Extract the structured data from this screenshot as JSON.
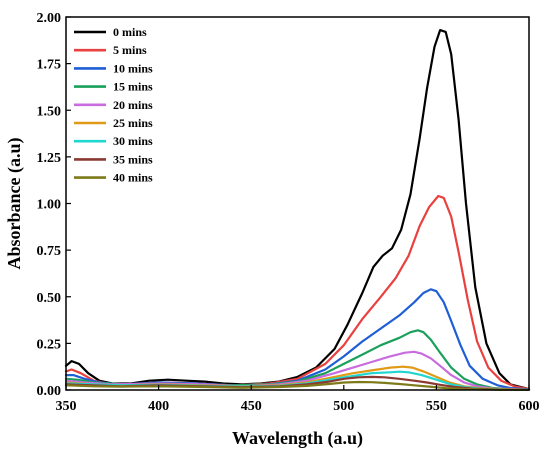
{
  "chart_data": {
    "type": "line",
    "title": "",
    "xlabel": "Wavelength (a.u)",
    "ylabel": "Absorbance (a.u)",
    "xlim": [
      350,
      600
    ],
    "ylim": [
      0,
      2.0
    ],
    "xticks": [
      350,
      400,
      450,
      500,
      550,
      600
    ],
    "yticks": [
      0,
      0.25,
      0.5,
      0.75,
      1.0,
      1.25,
      1.5,
      1.75,
      2.0
    ],
    "xtick_labels": [
      "350",
      "400",
      "450",
      "500",
      "550",
      "600"
    ],
    "ytick_labels": [
      "0.00",
      "0.25",
      "0.50",
      "0.75",
      "1.00",
      "1.25",
      "1.50",
      "1.75",
      "2.00"
    ],
    "grid": false,
    "legend_position": "top-left",
    "series": [
      {
        "name": "0 mins",
        "color": "#000000",
        "points": [
          [
            350,
            0.13
          ],
          [
            353,
            0.155
          ],
          [
            357,
            0.14
          ],
          [
            362,
            0.09
          ],
          [
            368,
            0.05
          ],
          [
            375,
            0.035
          ],
          [
            385,
            0.035
          ],
          [
            395,
            0.05
          ],
          [
            405,
            0.055
          ],
          [
            415,
            0.05
          ],
          [
            425,
            0.045
          ],
          [
            435,
            0.035
          ],
          [
            445,
            0.03
          ],
          [
            455,
            0.035
          ],
          [
            465,
            0.045
          ],
          [
            475,
            0.07
          ],
          [
            485,
            0.12
          ],
          [
            495,
            0.22
          ],
          [
            502,
            0.35
          ],
          [
            510,
            0.52
          ],
          [
            516,
            0.66
          ],
          [
            521,
            0.72
          ],
          [
            526,
            0.76
          ],
          [
            531,
            0.86
          ],
          [
            536,
            1.05
          ],
          [
            541,
            1.35
          ],
          [
            545,
            1.62
          ],
          [
            549,
            1.84
          ],
          [
            552,
            1.93
          ],
          [
            555,
            1.92
          ],
          [
            558,
            1.8
          ],
          [
            562,
            1.45
          ],
          [
            566,
            1.0
          ],
          [
            571,
            0.55
          ],
          [
            577,
            0.25
          ],
          [
            584,
            0.09
          ],
          [
            590,
            0.03
          ],
          [
            600,
            0.005
          ]
        ]
      },
      {
        "name": "5 mins",
        "color": "#e8413f",
        "points": [
          [
            350,
            0.1
          ],
          [
            353,
            0.11
          ],
          [
            358,
            0.09
          ],
          [
            365,
            0.05
          ],
          [
            372,
            0.035
          ],
          [
            385,
            0.03
          ],
          [
            400,
            0.04
          ],
          [
            420,
            0.035
          ],
          [
            440,
            0.025
          ],
          [
            460,
            0.035
          ],
          [
            475,
            0.06
          ],
          [
            490,
            0.14
          ],
          [
            500,
            0.24
          ],
          [
            510,
            0.38
          ],
          [
            520,
            0.5
          ],
          [
            528,
            0.6
          ],
          [
            535,
            0.72
          ],
          [
            541,
            0.88
          ],
          [
            546,
            0.98
          ],
          [
            551,
            1.04
          ],
          [
            554,
            1.03
          ],
          [
            558,
            0.93
          ],
          [
            562,
            0.74
          ],
          [
            567,
            0.48
          ],
          [
            572,
            0.26
          ],
          [
            578,
            0.12
          ],
          [
            585,
            0.05
          ],
          [
            592,
            0.02
          ],
          [
            600,
            0.005
          ]
        ]
      },
      {
        "name": "10 mins",
        "color": "#1f5fd6",
        "points": [
          [
            350,
            0.08
          ],
          [
            354,
            0.08
          ],
          [
            360,
            0.06
          ],
          [
            368,
            0.04
          ],
          [
            380,
            0.03
          ],
          [
            400,
            0.04
          ],
          [
            420,
            0.035
          ],
          [
            440,
            0.025
          ],
          [
            460,
            0.03
          ],
          [
            475,
            0.05
          ],
          [
            490,
            0.11
          ],
          [
            500,
            0.18
          ],
          [
            510,
            0.26
          ],
          [
            520,
            0.33
          ],
          [
            530,
            0.4
          ],
          [
            538,
            0.47
          ],
          [
            543,
            0.52
          ],
          [
            547,
            0.54
          ],
          [
            550,
            0.53
          ],
          [
            554,
            0.47
          ],
          [
            558,
            0.37
          ],
          [
            563,
            0.24
          ],
          [
            568,
            0.13
          ],
          [
            575,
            0.06
          ],
          [
            583,
            0.025
          ],
          [
            590,
            0.01
          ],
          [
            600,
            0.003
          ]
        ]
      },
      {
        "name": "15 mins",
        "color": "#1aa05a",
        "points": [
          [
            350,
            0.06
          ],
          [
            356,
            0.055
          ],
          [
            365,
            0.04
          ],
          [
            380,
            0.03
          ],
          [
            400,
            0.035
          ],
          [
            420,
            0.03
          ],
          [
            440,
            0.025
          ],
          [
            460,
            0.03
          ],
          [
            475,
            0.045
          ],
          [
            490,
            0.09
          ],
          [
            500,
            0.14
          ],
          [
            510,
            0.19
          ],
          [
            520,
            0.24
          ],
          [
            530,
            0.28
          ],
          [
            536,
            0.31
          ],
          [
            540,
            0.32
          ],
          [
            543,
            0.31
          ],
          [
            547,
            0.27
          ],
          [
            552,
            0.2
          ],
          [
            558,
            0.12
          ],
          [
            565,
            0.06
          ],
          [
            572,
            0.03
          ],
          [
            580,
            0.012
          ],
          [
            590,
            0.005
          ],
          [
            600,
            0.002
          ]
        ]
      },
      {
        "name": "20 mins",
        "color": "#c86ce0",
        "points": [
          [
            350,
            0.05
          ],
          [
            360,
            0.04
          ],
          [
            375,
            0.03
          ],
          [
            400,
            0.035
          ],
          [
            425,
            0.03
          ],
          [
            445,
            0.02
          ],
          [
            465,
            0.03
          ],
          [
            480,
            0.05
          ],
          [
            495,
            0.09
          ],
          [
            505,
            0.12
          ],
          [
            515,
            0.15
          ],
          [
            525,
            0.18
          ],
          [
            533,
            0.2
          ],
          [
            538,
            0.205
          ],
          [
            542,
            0.195
          ],
          [
            547,
            0.17
          ],
          [
            552,
            0.13
          ],
          [
            558,
            0.08
          ],
          [
            565,
            0.04
          ],
          [
            572,
            0.02
          ],
          [
            580,
            0.008
          ],
          [
            600,
            0.002
          ]
        ]
      },
      {
        "name": "25 mins",
        "color": "#e09a17",
        "points": [
          [
            350,
            0.04
          ],
          [
            365,
            0.03
          ],
          [
            380,
            0.025
          ],
          [
            400,
            0.03
          ],
          [
            425,
            0.025
          ],
          [
            445,
            0.02
          ],
          [
            465,
            0.025
          ],
          [
            480,
            0.04
          ],
          [
            495,
            0.07
          ],
          [
            505,
            0.09
          ],
          [
            515,
            0.105
          ],
          [
            525,
            0.12
          ],
          [
            532,
            0.125
          ],
          [
            537,
            0.12
          ],
          [
            543,
            0.1
          ],
          [
            550,
            0.07
          ],
          [
            557,
            0.04
          ],
          [
            565,
            0.02
          ],
          [
            575,
            0.008
          ],
          [
            590,
            0.003
          ],
          [
            600,
            0.001
          ]
        ]
      },
      {
        "name": "30 mins",
        "color": "#1fd6d1",
        "points": [
          [
            350,
            0.035
          ],
          [
            365,
            0.03
          ],
          [
            380,
            0.025
          ],
          [
            400,
            0.028
          ],
          [
            425,
            0.022
          ],
          [
            445,
            0.018
          ],
          [
            465,
            0.022
          ],
          [
            480,
            0.035
          ],
          [
            495,
            0.06
          ],
          [
            505,
            0.075
          ],
          [
            515,
            0.09
          ],
          [
            525,
            0.095
          ],
          [
            530,
            0.098
          ],
          [
            535,
            0.095
          ],
          [
            542,
            0.08
          ],
          [
            550,
            0.055
          ],
          [
            558,
            0.03
          ],
          [
            566,
            0.015
          ],
          [
            575,
            0.006
          ],
          [
            590,
            0.002
          ],
          [
            600,
            0.001
          ]
        ]
      },
      {
        "name": "35 mins",
        "color": "#8b3a32",
        "points": [
          [
            350,
            0.03
          ],
          [
            365,
            0.025
          ],
          [
            380,
            0.02
          ],
          [
            400,
            0.025
          ],
          [
            425,
            0.02
          ],
          [
            445,
            0.015
          ],
          [
            465,
            0.02
          ],
          [
            480,
            0.03
          ],
          [
            492,
            0.045
          ],
          [
            500,
            0.06
          ],
          [
            508,
            0.068
          ],
          [
            515,
            0.07
          ],
          [
            522,
            0.068
          ],
          [
            530,
            0.06
          ],
          [
            538,
            0.05
          ],
          [
            545,
            0.04
          ],
          [
            552,
            0.028
          ],
          [
            560,
            0.016
          ],
          [
            570,
            0.007
          ],
          [
            585,
            0.002
          ],
          [
            600,
            0.001
          ]
        ]
      },
      {
        "name": "40 mins",
        "color": "#7d7a1a",
        "points": [
          [
            350,
            0.025
          ],
          [
            365,
            0.02
          ],
          [
            380,
            0.018
          ],
          [
            400,
            0.02
          ],
          [
            425,
            0.016
          ],
          [
            445,
            0.012
          ],
          [
            465,
            0.016
          ],
          [
            480,
            0.022
          ],
          [
            492,
            0.032
          ],
          [
            500,
            0.04
          ],
          [
            508,
            0.043
          ],
          [
            515,
            0.042
          ],
          [
            522,
            0.038
          ],
          [
            530,
            0.032
          ],
          [
            538,
            0.025
          ],
          [
            546,
            0.018
          ],
          [
            555,
            0.01
          ],
          [
            565,
            0.005
          ],
          [
            580,
            0.002
          ],
          [
            600,
            0.001
          ]
        ]
      }
    ]
  }
}
